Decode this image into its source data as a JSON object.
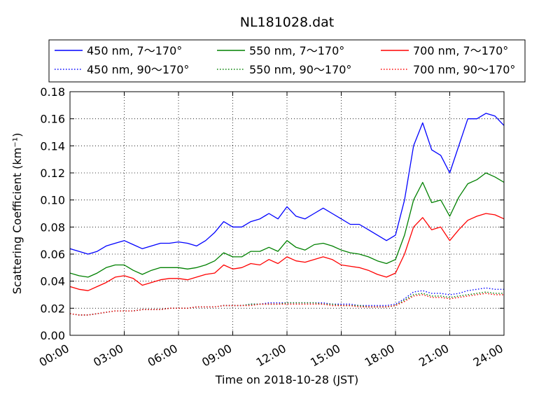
{
  "chart_data": {
    "type": "line",
    "title": "NL181028.dat",
    "xlabel": "Time on 2018-10-28 (JST)",
    "ylabel": "Scattering Coefficient (km⁻¹)",
    "xlim": [
      "00:00",
      "24:00"
    ],
    "ylim": [
      0.0,
      0.18
    ],
    "grid": true,
    "legend_position": "top",
    "x_ticks": [
      "00:00",
      "03:00",
      "06:00",
      "09:00",
      "12:00",
      "15:00",
      "18:00",
      "21:00",
      "24:00"
    ],
    "y_ticks": [
      "0.00",
      "0.02",
      "0.04",
      "0.06",
      "0.08",
      "0.10",
      "0.12",
      "0.14",
      "0.16",
      "0.18"
    ],
    "x": [
      "00:00",
      "00:30",
      "01:00",
      "01:30",
      "02:00",
      "02:30",
      "03:00",
      "03:30",
      "04:00",
      "04:30",
      "05:00",
      "05:30",
      "06:00",
      "06:30",
      "07:00",
      "07:30",
      "08:00",
      "08:30",
      "09:00",
      "09:30",
      "10:00",
      "10:30",
      "11:00",
      "11:30",
      "12:00",
      "12:30",
      "13:00",
      "13:30",
      "14:00",
      "14:30",
      "15:00",
      "15:30",
      "16:00",
      "16:30",
      "17:00",
      "17:30",
      "18:00",
      "18:30",
      "19:00",
      "19:30",
      "20:00",
      "20:30",
      "21:00",
      "21:30",
      "22:00",
      "22:30",
      "23:00",
      "23:30",
      "24:00"
    ],
    "series": [
      {
        "name": "450 nm, 7～170°",
        "color": "#0000ff",
        "style": "solid",
        "values": [
          0.064,
          0.062,
          0.06,
          0.062,
          0.066,
          0.068,
          0.07,
          0.067,
          0.064,
          0.066,
          0.068,
          0.068,
          0.069,
          0.068,
          0.066,
          0.07,
          0.076,
          0.084,
          0.08,
          0.08,
          0.084,
          0.086,
          0.09,
          0.086,
          0.095,
          0.088,
          0.086,
          0.09,
          0.094,
          0.09,
          0.086,
          0.082,
          0.082,
          0.078,
          0.074,
          0.07,
          0.074,
          0.1,
          0.14,
          0.157,
          0.137,
          0.133,
          0.12,
          0.14,
          0.16,
          0.16,
          0.164,
          0.162,
          0.155
        ]
      },
      {
        "name": "550 nm, 7～170°",
        "color": "#008000",
        "style": "solid",
        "values": [
          0.046,
          0.044,
          0.043,
          0.046,
          0.05,
          0.052,
          0.052,
          0.048,
          0.045,
          0.048,
          0.05,
          0.05,
          0.05,
          0.049,
          0.05,
          0.052,
          0.055,
          0.061,
          0.058,
          0.058,
          0.062,
          0.062,
          0.065,
          0.062,
          0.07,
          0.065,
          0.063,
          0.067,
          0.068,
          0.066,
          0.063,
          0.061,
          0.06,
          0.058,
          0.055,
          0.053,
          0.056,
          0.074,
          0.1,
          0.113,
          0.098,
          0.1,
          0.088,
          0.102,
          0.112,
          0.115,
          0.12,
          0.117,
          0.113
        ]
      },
      {
        "name": "700 nm, 7～170°",
        "color": "#ff0000",
        "style": "solid",
        "values": [
          0.036,
          0.034,
          0.033,
          0.036,
          0.039,
          0.043,
          0.044,
          0.042,
          0.037,
          0.039,
          0.041,
          0.042,
          0.042,
          0.041,
          0.043,
          0.045,
          0.046,
          0.052,
          0.049,
          0.05,
          0.053,
          0.052,
          0.056,
          0.053,
          0.058,
          0.055,
          0.054,
          0.056,
          0.058,
          0.056,
          0.052,
          0.051,
          0.05,
          0.048,
          0.045,
          0.043,
          0.046,
          0.06,
          0.08,
          0.087,
          0.078,
          0.08,
          0.07,
          0.078,
          0.085,
          0.088,
          0.09,
          0.089,
          0.086
        ]
      },
      {
        "name": "450 nm, 90～170°",
        "color": "#0000ff",
        "style": "dotted",
        "values": [
          0.016,
          0.015,
          0.015,
          0.016,
          0.017,
          0.018,
          0.018,
          0.018,
          0.019,
          0.019,
          0.019,
          0.02,
          0.02,
          0.02,
          0.021,
          0.021,
          0.021,
          0.022,
          0.022,
          0.022,
          0.023,
          0.023,
          0.024,
          0.024,
          0.024,
          0.024,
          0.024,
          0.024,
          0.024,
          0.023,
          0.023,
          0.023,
          0.022,
          0.022,
          0.022,
          0.022,
          0.023,
          0.027,
          0.032,
          0.033,
          0.031,
          0.031,
          0.03,
          0.031,
          0.033,
          0.034,
          0.035,
          0.034,
          0.034
        ]
      },
      {
        "name": "550 nm, 90～170°",
        "color": "#008000",
        "style": "dotted",
        "values": [
          0.016,
          0.015,
          0.015,
          0.016,
          0.017,
          0.018,
          0.018,
          0.018,
          0.019,
          0.019,
          0.019,
          0.02,
          0.02,
          0.02,
          0.021,
          0.021,
          0.021,
          0.022,
          0.022,
          0.022,
          0.023,
          0.023,
          0.023,
          0.023,
          0.024,
          0.024,
          0.024,
          0.024,
          0.023,
          0.023,
          0.022,
          0.022,
          0.022,
          0.021,
          0.021,
          0.021,
          0.022,
          0.026,
          0.03,
          0.031,
          0.029,
          0.029,
          0.028,
          0.029,
          0.03,
          0.031,
          0.032,
          0.031,
          0.031
        ]
      },
      {
        "name": "700 nm, 90～170°",
        "color": "#ff0000",
        "style": "dotted",
        "values": [
          0.016,
          0.015,
          0.015,
          0.016,
          0.017,
          0.018,
          0.018,
          0.018,
          0.019,
          0.019,
          0.019,
          0.02,
          0.02,
          0.02,
          0.021,
          0.021,
          0.021,
          0.022,
          0.022,
          0.022,
          0.022,
          0.023,
          0.023,
          0.023,
          0.023,
          0.023,
          0.023,
          0.023,
          0.023,
          0.022,
          0.022,
          0.022,
          0.021,
          0.021,
          0.021,
          0.021,
          0.022,
          0.025,
          0.029,
          0.03,
          0.028,
          0.028,
          0.027,
          0.028,
          0.029,
          0.03,
          0.031,
          0.03,
          0.03
        ]
      }
    ],
    "legend": [
      [
        "450 nm, 7～170°",
        "550 nm, 7～170°",
        "700 nm, 7～170°"
      ],
      [
        "450 nm, 90～170°",
        "550 nm, 90～170°",
        "700 nm, 90～170°"
      ]
    ]
  }
}
